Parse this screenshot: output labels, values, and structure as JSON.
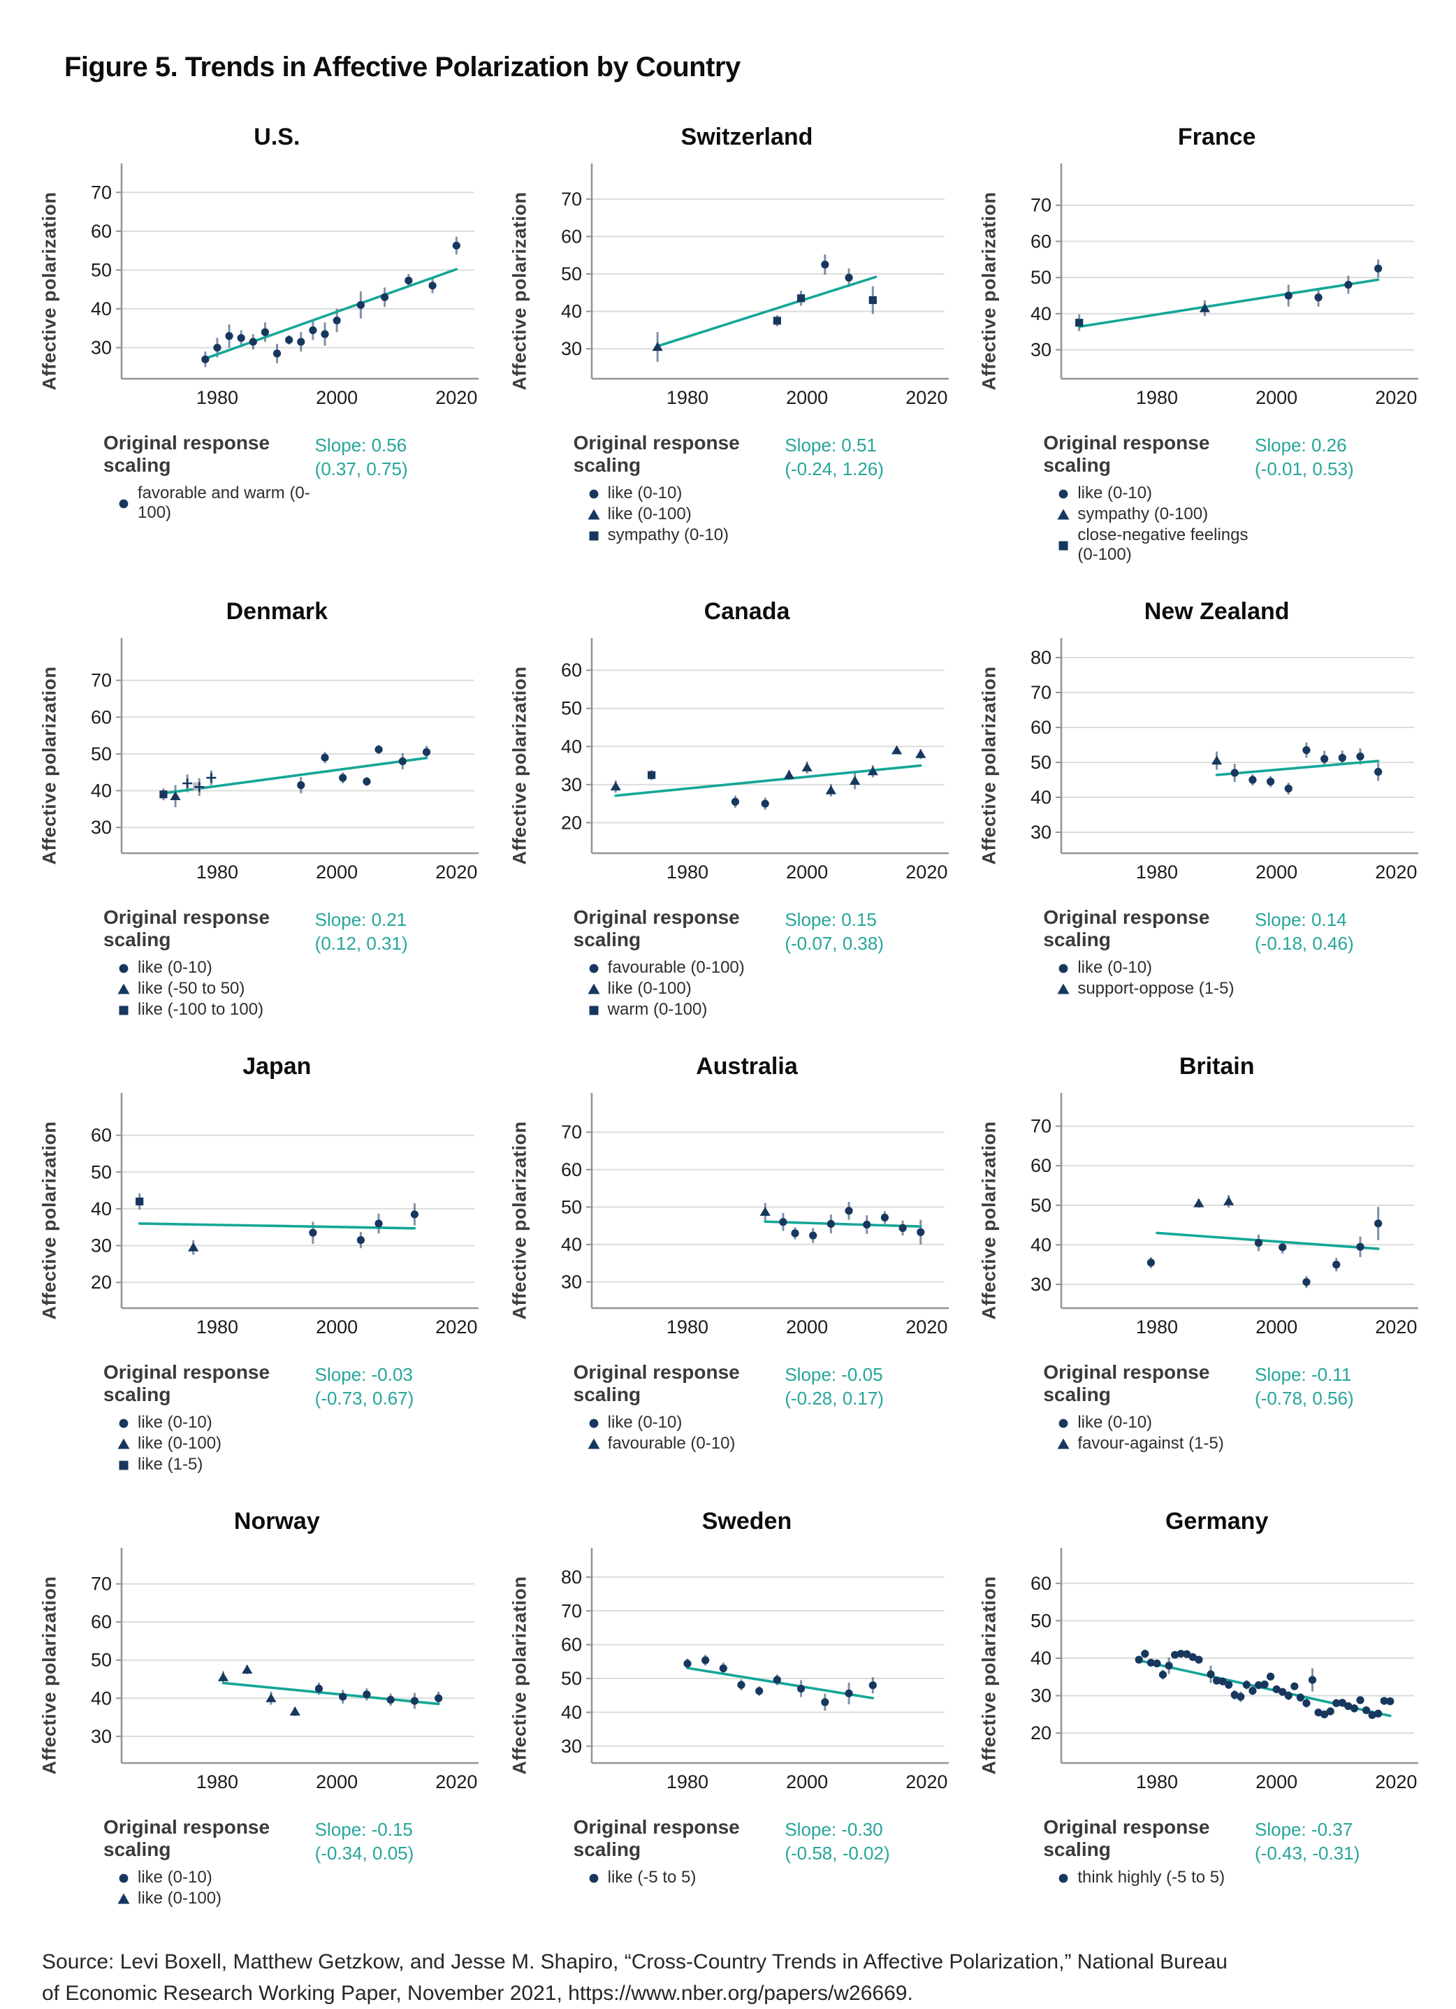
{
  "figure": {
    "title": "Figure 5. Trends in Affective Polarization by Country",
    "source_lines": [
      "Source: Levi Boxell, Matthew Getzkow, and Jesse M. Shapiro, “Cross-Country Trends in Affective Polarization,” National Bureau",
      "of Economic Research Working Paper, November 2021, https://www.nber.org/papers/w26669."
    ]
  },
  "shared": {
    "ylabel": "Affective polarization",
    "legend_title": "Original response scaling",
    "xticks": [
      1980,
      2000,
      2020
    ],
    "xlim": [
      1964,
      2023
    ]
  },
  "colors": {
    "point_navy": "#17375e",
    "error_bar": "#17375e",
    "trend_teal": "#14a697",
    "slope_teal": "#26a69a",
    "grid": "#dcdcdc",
    "spine": "#919599",
    "tick_text": "#1c1c1c",
    "gray_marker": "#b6bec6"
  },
  "chart_data": {
    "note": "see panels[] — each panel is a scatter series with error bars and a linear trend",
    "type": "scatter"
  },
  "panels": [
    {
      "title": "U.S.",
      "slope_label": "Slope: 0.56",
      "ci_label": "(0.37, 0.75)",
      "yticks": [
        30,
        40,
        50,
        60,
        70
      ],
      "ylim": [
        22,
        76
      ],
      "legend": [
        {
          "marker": "c",
          "label": "favorable and warm (0-100)"
        }
      ],
      "points": [
        [
          "c",
          1978,
          27,
          2
        ],
        [
          "c",
          1980,
          30,
          2.5
        ],
        [
          "c",
          1982,
          33,
          3
        ],
        [
          "c",
          1984,
          32.5,
          2
        ],
        [
          "c",
          1986,
          31.5,
          2
        ],
        [
          "c",
          1988,
          34,
          2.5
        ],
        [
          "c",
          1990,
          28.5,
          2.5
        ],
        [
          "c",
          1992,
          32,
          1.2
        ],
        [
          "c",
          1994,
          31.5,
          2.5
        ],
        [
          "c",
          1996,
          34.5,
          2.5
        ],
        [
          "c",
          1998,
          33.5,
          3
        ],
        [
          "c",
          2000,
          37,
          3
        ],
        [
          "c",
          2004,
          41,
          3.5
        ],
        [
          "c",
          2008,
          43,
          2.5
        ],
        [
          "c",
          2012,
          47.3,
          1.7
        ],
        [
          "c",
          2016,
          46,
          2
        ],
        [
          "c",
          2020,
          56.3,
          2.3
        ]
      ],
      "trend": [
        1978,
        27.2,
        2020,
        50.2
      ]
    },
    {
      "title": "Switzerland",
      "slope_label": "Slope: 0.51",
      "ci_label": "(-0.24, 1.26)",
      "yticks": [
        30,
        40,
        50,
        60,
        70
      ],
      "ylim": [
        22,
        78
      ],
      "legend": [
        {
          "marker": "c",
          "label": "like (0-10)"
        },
        {
          "marker": "t",
          "label": "like (0-100)"
        },
        {
          "marker": "s",
          "label": "sympathy (0-10)"
        }
      ],
      "points": [
        [
          "t",
          1975,
          30.5,
          4
        ],
        [
          "s",
          1995,
          37.5,
          1.5
        ],
        [
          "s",
          1999,
          43.5,
          2
        ],
        [
          "c",
          2003,
          52.5,
          2.7
        ],
        [
          "c",
          2007,
          49,
          2.5
        ],
        [
          "s",
          2011,
          43,
          3.7
        ]
      ],
      "trend": [
        1975,
        30.7,
        2011.5,
        49.2
      ]
    },
    {
      "title": "France",
      "slope_label": "Slope: 0.26",
      "ci_label": "(-0.01, 0.53)",
      "yticks": [
        30,
        40,
        50,
        60,
        70
      ],
      "ylim": [
        22,
        80
      ],
      "legend": [
        {
          "marker": "c",
          "label": "like (0-10)"
        },
        {
          "marker": "t",
          "label": "sympathy (0-100)"
        },
        {
          "marker": "s",
          "label": "close-negative feelings (0-100)"
        }
      ],
      "points": [
        [
          "s",
          1967,
          37.5,
          2.3
        ],
        [
          "t",
          1988,
          41.5,
          2.2
        ],
        [
          "c",
          2002,
          45,
          3
        ],
        [
          "c",
          2007,
          44.5,
          2.5
        ],
        [
          "c",
          2012,
          48,
          2.5
        ],
        [
          "c",
          2017,
          52.5,
          2.5
        ]
      ],
      "trend": [
        1967,
        36.4,
        2017,
        49.4
      ]
    },
    {
      "title": "Denmark",
      "slope_label": "Slope: 0.21",
      "ci_label": "(0.12, 0.31)",
      "yticks": [
        30,
        40,
        50,
        60,
        70
      ],
      "ylim": [
        23,
        80
      ],
      "legend": [
        {
          "marker": "c",
          "label": "like (0-10)"
        },
        {
          "marker": "t",
          "label": "like (-50 to 50)"
        },
        {
          "marker": "s",
          "label": "like (-100 to 100)"
        }
      ],
      "points": [
        [
          "s",
          1971,
          39,
          1.6
        ],
        [
          "t",
          1973,
          38.5,
          3
        ],
        [
          "p",
          1975,
          42,
          2.4
        ],
        [
          "g",
          1976.6,
          41.2,
          0
        ],
        [
          "p",
          1977,
          41,
          2.4
        ],
        [
          "p",
          1979,
          43.5,
          2
        ],
        [
          "c",
          1994,
          41.5,
          2.2
        ],
        [
          "c",
          1998,
          49,
          1.5
        ],
        [
          "c",
          2001,
          43.5,
          1.5
        ],
        [
          "c",
          2005,
          42.5,
          1.2
        ],
        [
          "c",
          2007,
          51.2,
          1.2
        ],
        [
          "c",
          2011,
          48,
          2.2
        ],
        [
          "c",
          2015,
          50.5,
          1.7
        ]
      ],
      "trend": [
        1971,
        39.3,
        2015,
        48.9
      ]
    },
    {
      "title": "Canada",
      "slope_label": "Slope: 0.15",
      "ci_label": "(-0.07, 0.38)",
      "yticks": [
        20,
        30,
        40,
        50,
        60
      ],
      "ylim": [
        12,
        67
      ],
      "legend": [
        {
          "marker": "c",
          "label": "favourable (0-100)"
        },
        {
          "marker": "t",
          "label": "like (0-100)"
        },
        {
          "marker": "s",
          "label": "warm (0-100)"
        }
      ],
      "points": [
        [
          "t",
          1968,
          29.5,
          1.6
        ],
        [
          "s",
          1974,
          32.5,
          1.3
        ],
        [
          "c",
          1988,
          25.5,
          1.6
        ],
        [
          "c",
          1993,
          25,
          1.6
        ],
        [
          "t",
          1997,
          32.5,
          1.3
        ],
        [
          "t",
          2000,
          34.5,
          1.6
        ],
        [
          "t",
          2004,
          28.5,
          1.6
        ],
        [
          "t",
          2008,
          31,
          2.2
        ],
        [
          "t",
          2011,
          33.5,
          1.6
        ],
        [
          "t",
          2015,
          39,
          0.9
        ],
        [
          "t",
          2019,
          38,
          1.3
        ]
      ],
      "trend": [
        1968,
        27.1,
        2019,
        35.0
      ]
    },
    {
      "title": "New Zealand",
      "slope_label": "Slope: 0.14",
      "ci_label": "(-0.18, 0.46)",
      "yticks": [
        30,
        40,
        50,
        60,
        70,
        80
      ],
      "ylim": [
        24,
        84
      ],
      "legend": [
        {
          "marker": "c",
          "label": "like (0-10)"
        },
        {
          "marker": "t",
          "label": "support-oppose (1-5)"
        }
      ],
      "points": [
        [
          "t",
          1990,
          50.5,
          2.6
        ],
        [
          "c",
          1993,
          47,
          2.6
        ],
        [
          "c",
          1996,
          45,
          1.6
        ],
        [
          "c",
          1999,
          44.5,
          1.6
        ],
        [
          "c",
          2002,
          42.5,
          1.7
        ],
        [
          "c",
          2005,
          53.5,
          2.2
        ],
        [
          "c",
          2008,
          51,
          2.3
        ],
        [
          "c",
          2011,
          51.3,
          2.1
        ],
        [
          "c",
          2014,
          51.7,
          2.3
        ],
        [
          "c",
          2017,
          47.3,
          2.6
        ]
      ],
      "trend": [
        1990,
        46.4,
        2017,
        50.4
      ]
    },
    {
      "title": "Japan",
      "slope_label": "Slope: -0.03",
      "ci_label": "(-0.73, 0.67)",
      "yticks": [
        20,
        30,
        40,
        50,
        60
      ],
      "ylim": [
        13,
        70
      ],
      "legend": [
        {
          "marker": "c",
          "label": "like (0-10)"
        },
        {
          "marker": "t",
          "label": "like (0-100)"
        },
        {
          "marker": "s",
          "label": "like (1-5)"
        }
      ],
      "points": [
        [
          "s",
          1967,
          42,
          2.2
        ],
        [
          "t",
          1976,
          29.5,
          2
        ],
        [
          "c",
          1996,
          33.5,
          3
        ],
        [
          "c",
          2004,
          31.5,
          2.2
        ],
        [
          "c",
          2007,
          36,
          2.7
        ],
        [
          "c",
          2013,
          38.5,
          3
        ]
      ],
      "trend": [
        1967,
        36.0,
        2013,
        34.7
      ]
    },
    {
      "title": "Australia",
      "slope_label": "Slope: -0.05",
      "ci_label": "(-0.28, 0.17)",
      "yticks": [
        30,
        40,
        50,
        60,
        70
      ],
      "ylim": [
        23,
        79
      ],
      "legend": [
        {
          "marker": "c",
          "label": "like (0-10)"
        },
        {
          "marker": "t",
          "label": "favourable (0-10)"
        }
      ],
      "points": [
        [
          "t",
          1993,
          48.7,
          2.4
        ],
        [
          "c",
          1996,
          46,
          2.4
        ],
        [
          "c",
          1998,
          43,
          1.6
        ],
        [
          "c",
          2001,
          42.4,
          2
        ],
        [
          "c",
          2004,
          45.5,
          2.5
        ],
        [
          "c",
          2007,
          49,
          2.4
        ],
        [
          "c",
          2010,
          45.3,
          2.5
        ],
        [
          "c",
          2013,
          47.2,
          1.7
        ],
        [
          "c",
          2016,
          44.4,
          2
        ],
        [
          "c",
          2019,
          43.3,
          3.3
        ]
      ],
      "trend": [
        1993,
        46.1,
        2019,
        44.8
      ]
    },
    {
      "title": "Britain",
      "slope_label": "Slope: -0.11",
      "ci_label": "(-0.78, 0.56)",
      "yticks": [
        30,
        40,
        50,
        60,
        70
      ],
      "ylim": [
        24,
        77
      ],
      "legend": [
        {
          "marker": "c",
          "label": "like (0-10)"
        },
        {
          "marker": "t",
          "label": "favour-against (1-5)"
        }
      ],
      "points": [
        [
          "c",
          1979,
          35.5,
          1.4
        ],
        [
          "t",
          1987,
          50.5,
          1.1
        ],
        [
          "t",
          1992,
          51,
          1.6
        ],
        [
          "c",
          1997,
          40.5,
          2.1
        ],
        [
          "c",
          2001,
          39.4,
          1.6
        ],
        [
          "c",
          2005,
          30.6,
          1.5
        ],
        [
          "c",
          2010,
          35,
          1.7
        ],
        [
          "c",
          2014,
          39.5,
          2.6
        ],
        [
          "c",
          2017,
          45.4,
          4.2
        ]
      ],
      "trend": [
        1980,
        43.0,
        2017,
        39.0
      ]
    },
    {
      "title": "Norway",
      "slope_label": "Slope: -0.15",
      "ci_label": "(-0.34, 0.05)",
      "yticks": [
        30,
        40,
        50,
        60,
        70
      ],
      "ylim": [
        23,
        78
      ],
      "legend": [
        {
          "marker": "c",
          "label": "like (0-10)"
        },
        {
          "marker": "t",
          "label": "like (0-100)"
        }
      ],
      "points": [
        [
          "t",
          1981,
          45.5,
          1.6
        ],
        [
          "t",
          1985,
          47.5,
          1.2
        ],
        [
          "t",
          1989,
          40,
          1.7
        ],
        [
          "t",
          1993,
          36.5,
          1.2
        ],
        [
          "c",
          1997,
          42.5,
          1.6
        ],
        [
          "c",
          2001,
          40.4,
          1.8
        ],
        [
          "c",
          2005,
          41,
          1.6
        ],
        [
          "c",
          2009,
          39.6,
          1.6
        ],
        [
          "c",
          2013,
          39.3,
          2.1
        ],
        [
          "c",
          2017,
          40,
          1.7
        ]
      ],
      "trend": [
        1981,
        44.0,
        2017,
        38.5
      ]
    },
    {
      "title": "Sweden",
      "slope_label": "Slope: -0.30",
      "ci_label": "(-0.58, -0.02)",
      "yticks": [
        30,
        40,
        50,
        60,
        70,
        80
      ],
      "ylim": [
        25,
        87
      ],
      "legend": [
        {
          "marker": "c",
          "label": "like (-5 to 5)"
        }
      ],
      "points": [
        [
          "c",
          1980,
          54.4,
          1.5
        ],
        [
          "c",
          1983,
          55.4,
          1.6
        ],
        [
          "c",
          1986,
          53,
          1.7
        ],
        [
          "c",
          1989,
          48.1,
          1.6
        ],
        [
          "c",
          1992,
          46.3,
          1.4
        ],
        [
          "c",
          1995,
          49.6,
          1.6
        ],
        [
          "c",
          1999,
          47,
          2.5
        ],
        [
          "c",
          2003,
          43,
          2.5
        ],
        [
          "c",
          2007,
          45.6,
          3.2
        ],
        [
          "c",
          2011,
          48,
          2.4
        ]
      ],
      "trend": [
        1980,
        53.1,
        2011,
        44.2
      ]
    },
    {
      "title": "Germany",
      "slope_label": "Slope: -0.37",
      "ci_label": "(-0.43, -0.31)",
      "yticks": [
        20,
        30,
        40,
        50,
        60
      ],
      "ylim": [
        12,
        68
      ],
      "legend": [
        {
          "marker": "c",
          "label": "think highly (-5 to 5)"
        }
      ],
      "points": [
        [
          "c",
          1977,
          39.6,
          0.9
        ],
        [
          "c",
          1978,
          41.2,
          1.1
        ],
        [
          "c",
          1979,
          38.8,
          0.9
        ],
        [
          "c",
          1980,
          38.6,
          0.9
        ],
        [
          "c",
          1981,
          35.6,
          1.3
        ],
        [
          "c",
          1982,
          38.0,
          2.2
        ],
        [
          "c",
          1983,
          40.9,
          0.9
        ],
        [
          "c",
          1984,
          41.2,
          0.9
        ],
        [
          "c",
          1985,
          41.1,
          0.9
        ],
        [
          "c",
          1986,
          40.3,
          0.9
        ],
        [
          "c",
          1987,
          39.6,
          0.9
        ],
        [
          "c",
          1989,
          35.7,
          2.3
        ],
        [
          "c",
          1990,
          34.0,
          1.0
        ],
        [
          "c",
          1991,
          33.8,
          1.0
        ],
        [
          "c",
          1992,
          32.9,
          1.1
        ],
        [
          "c",
          1993,
          30.2,
          1.3
        ],
        [
          "c",
          1994,
          29.7,
          1.4
        ],
        [
          "c",
          1995,
          32.9,
          1.2
        ],
        [
          "c",
          1996,
          31.3,
          1.1
        ],
        [
          "c",
          1997,
          32.8,
          0.9
        ],
        [
          "c",
          1998,
          33.0,
          0.9
        ],
        [
          "c",
          1999,
          35.1,
          1.0
        ],
        [
          "c",
          2000,
          31.7,
          1.0
        ],
        [
          "c",
          2001,
          31.0,
          1.0
        ],
        [
          "c",
          2002,
          30.0,
          1.2
        ],
        [
          "c",
          2003,
          32.5,
          1.0
        ],
        [
          "c",
          2004,
          29.5,
          1.1
        ],
        [
          "c",
          2005,
          28.0,
          1.2
        ],
        [
          "c",
          2006,
          34.2,
          3.1
        ],
        [
          "c",
          2007,
          25.5,
          1.0
        ],
        [
          "c",
          2008,
          25.0,
          0.9
        ],
        [
          "c",
          2009,
          25.8,
          1.1
        ],
        [
          "c",
          2010,
          28.0,
          1.0
        ],
        [
          "c",
          2011,
          28.1,
          0.9
        ],
        [
          "c",
          2012,
          27.2,
          1.0
        ],
        [
          "c",
          2013,
          26.6,
          1.1
        ],
        [
          "c",
          2014,
          28.8,
          1.0
        ],
        [
          "c",
          2015,
          26.1,
          0.9
        ],
        [
          "c",
          2016,
          24.8,
          0.9
        ],
        [
          "c",
          2017,
          25.2,
          0.9
        ],
        [
          "c",
          2018,
          28.6,
          0.9
        ],
        [
          "c",
          2019,
          28.5,
          0.9
        ]
      ],
      "trend": [
        1977,
        39.4,
        2019,
        24.6
      ]
    }
  ]
}
